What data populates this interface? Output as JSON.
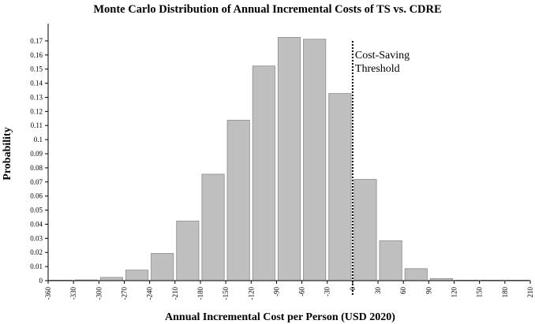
{
  "chart_data": {
    "type": "bar",
    "title": "Monte Carlo Distribution of Annual Incremental Costs of TS vs. CDRE",
    "xlabel": "Annual Incremental Cost per Person (USD 2020)",
    "ylabel": "Probability",
    "xlim": [
      -360,
      210
    ],
    "ylim": [
      0,
      0.18
    ],
    "x_tick_values": [
      -360,
      -330,
      -300,
      -270,
      -240,
      -210,
      -180,
      -150,
      -120,
      -90,
      -60,
      -30,
      0,
      30,
      60,
      90,
      120,
      150,
      180,
      210
    ],
    "x_tick_labels": [
      "-360",
      "-330",
      "-300",
      "-270",
      "-240",
      "-210",
      "-180",
      "-150",
      "-120",
      "-90",
      "-60",
      "-30",
      "0",
      "30",
      "60",
      "90",
      "120",
      "150",
      "180",
      "210"
    ],
    "y_tick_values": [
      0,
      0.01,
      0.02,
      0.03,
      0.04,
      0.05,
      0.06,
      0.07,
      0.08,
      0.09,
      0.1,
      0.11,
      0.12,
      0.13,
      0.14,
      0.15,
      0.16,
      0.17
    ],
    "y_tick_labels": [
      "0",
      "0.01",
      "0.02",
      "0.03",
      "0.04",
      "0.05",
      "0.06",
      "0.07",
      "0.08",
      "0.09",
      "0.1",
      "0.11",
      "0.12",
      "0.13",
      "0.14",
      "0.15",
      "0.16",
      "0.17"
    ],
    "bin_width": 30,
    "bin_starts": [
      -360,
      -330,
      -300,
      -270,
      -240,
      -210,
      -180,
      -150,
      -120,
      -90,
      -60,
      -30,
      0,
      30,
      60,
      90,
      120,
      150,
      180
    ],
    "values": [
      0.0001,
      0.0005,
      0.0023,
      0.0075,
      0.0193,
      0.0423,
      0.0755,
      0.1138,
      0.1522,
      0.1725,
      0.1712,
      0.1327,
      0.0718,
      0.0283,
      0.0085,
      0.0015,
      0.0003,
      0.0001,
      0.0001
    ],
    "threshold": {
      "x": 0,
      "line_style": "dotted",
      "label_lines": [
        "Cost-Saving",
        "Threshold"
      ]
    },
    "grid": false,
    "legend": "none",
    "colors": {
      "bar_fill": "#bfbfbf",
      "bar_stroke": "#8c8c8c",
      "axis": "#000000",
      "threshold": "#000000"
    }
  }
}
